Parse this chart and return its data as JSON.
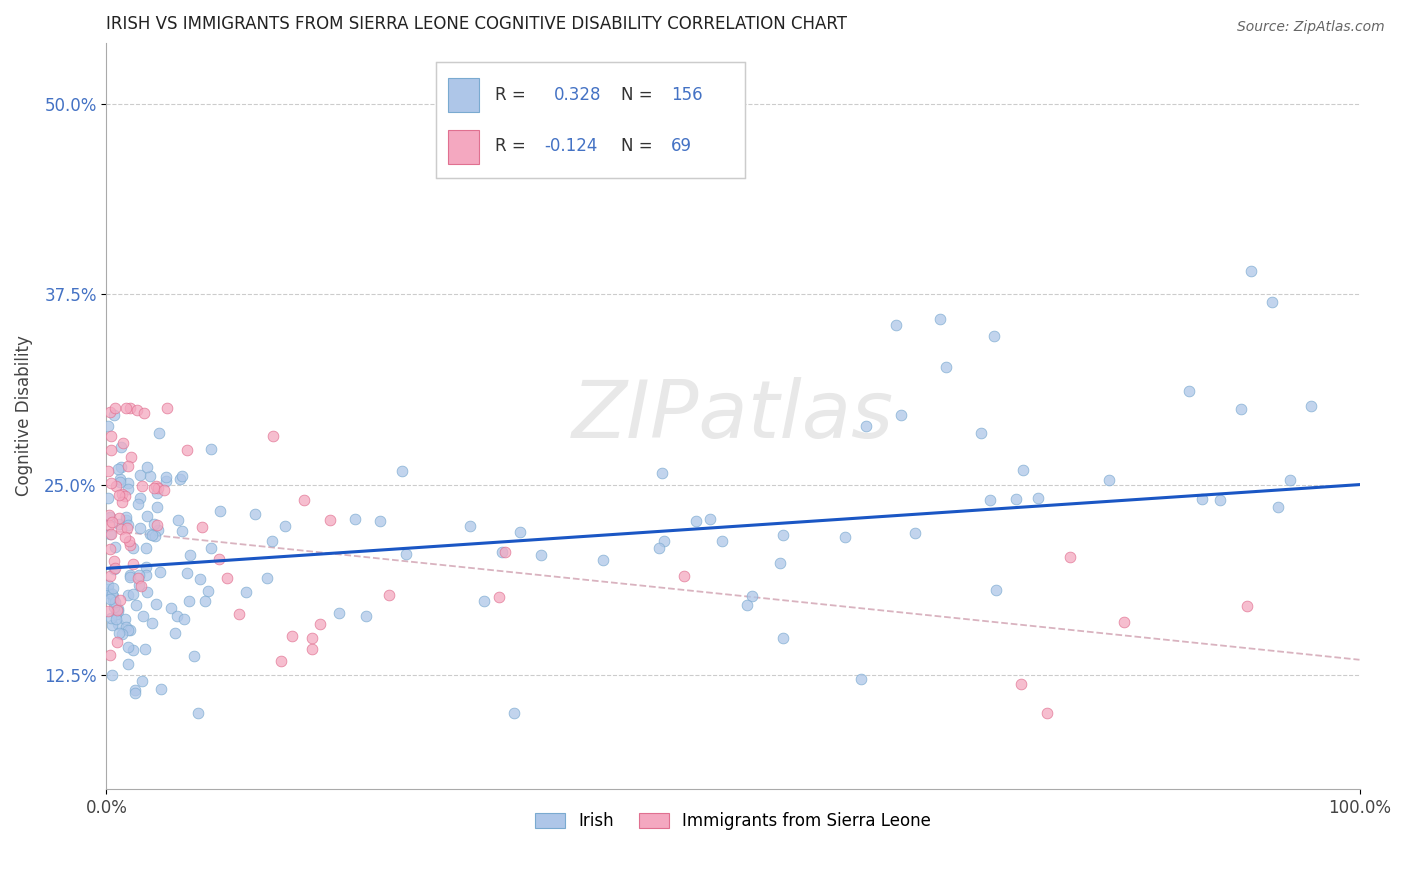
{
  "title": "IRISH VS IMMIGRANTS FROM SIERRA LEONE COGNITIVE DISABILITY CORRELATION CHART",
  "source": "Source: ZipAtlas.com",
  "ylabel": "Cognitive Disability",
  "xlim": [
    0,
    100
  ],
  "ylim": [
    5,
    54
  ],
  "ytick_vals": [
    12.5,
    25.0,
    37.5,
    50.0
  ],
  "irish_color": "#aec6e8",
  "irish_edge_color": "#7aaad0",
  "sierra_color": "#f4a8c0",
  "sierra_edge_color": "#e07090",
  "irish_line_color": "#1a56c4",
  "sierra_line_color": "#e08090",
  "legend_label1": "Irish",
  "legend_label2": "Immigrants from Sierra Leone",
  "watermark": "ZIPatlas",
  "title_fontsize": 13,
  "legend_r1_val": "0.328",
  "legend_n1_val": "156",
  "legend_r2_val": "-0.124",
  "legend_n2_val": "69"
}
